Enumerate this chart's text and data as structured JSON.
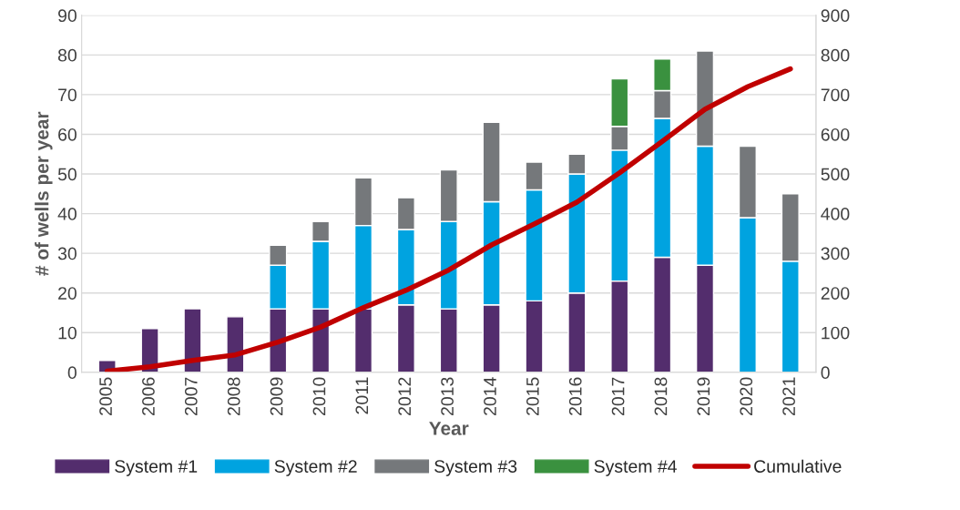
{
  "chart_data": {
    "type": "bar",
    "stacked": true,
    "xlabel": "Year",
    "ylabel": "# of wells per year",
    "categories": [
      "2005",
      "2006",
      "2007",
      "2008",
      "2009",
      "2010",
      "2011",
      "2012",
      "2013",
      "2014",
      "2015",
      "2016",
      "2017",
      "2018",
      "2019",
      "2020",
      "2021"
    ],
    "series": [
      {
        "name": "System #1",
        "color": "#532d6d",
        "values": [
          3,
          11,
          16,
          14,
          16,
          16,
          16,
          17,
          16,
          17,
          18,
          20,
          23,
          29,
          27,
          null,
          null
        ]
      },
      {
        "name": "System #2",
        "color": "#00a3e0",
        "values": [
          null,
          null,
          null,
          null,
          11,
          17,
          21,
          19,
          22,
          26,
          28,
          30,
          33,
          35,
          30,
          39,
          28
        ]
      },
      {
        "name": "System #3",
        "color": "#75787b",
        "values": [
          null,
          null,
          null,
          null,
          5,
          5,
          12,
          8,
          13,
          20,
          7,
          5,
          6,
          7,
          24,
          18,
          17
        ]
      },
      {
        "name": "System #4",
        "color": "#3a913f",
        "values": [
          null,
          null,
          null,
          null,
          null,
          null,
          null,
          null,
          null,
          null,
          null,
          null,
          12,
          8,
          null,
          null,
          null
        ]
      },
      {
        "name": "Cumulative",
        "type": "line",
        "axis": "y2",
        "color": "#c00000",
        "line_style": "solid",
        "values": [
          3,
          14,
          30,
          44,
          76,
          114,
          163,
          207,
          258,
          321,
          374,
          429,
          503,
          582,
          663,
          720,
          765
        ]
      }
    ],
    "ylim": [
      0,
      90
    ],
    "yticks": [
      0,
      10,
      20,
      30,
      40,
      50,
      60,
      70,
      80,
      90
    ],
    "y2lim": [
      0,
      900
    ],
    "y2ticks": [
      0,
      100,
      200,
      300,
      400,
      500,
      600,
      700,
      800,
      900
    ],
    "grid": "y",
    "legend": "bottom"
  }
}
